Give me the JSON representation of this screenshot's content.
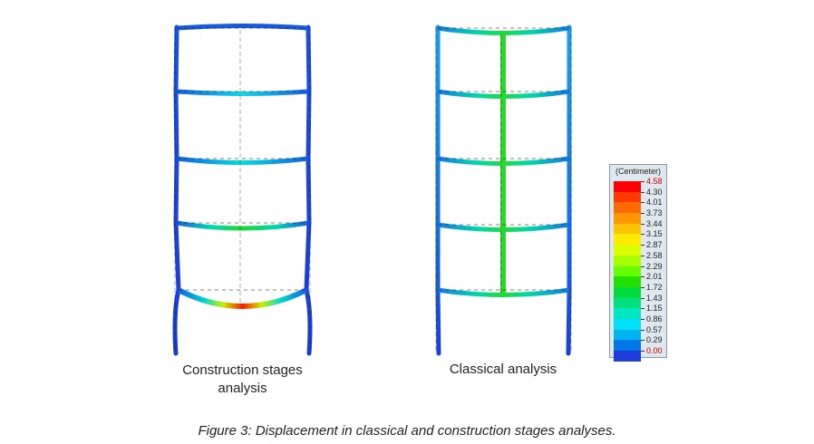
{
  "left_model": {
    "caption_line1": "Construction stages",
    "caption_line2": "analysis"
  },
  "right_model": {
    "caption": "Classical analysis"
  },
  "legend": {
    "title": "(Centimeter)",
    "levels": [
      {
        "label": "4.58",
        "color": "#ff0000",
        "highlight": true
      },
      {
        "label": "4.30",
        "color": "#ff3a00",
        "highlight": false
      },
      {
        "label": "4.01",
        "color": "#ff6a00",
        "highlight": false
      },
      {
        "label": "3.73",
        "color": "#ff9600",
        "highlight": false
      },
      {
        "label": "3.44",
        "color": "#ffc400",
        "highlight": false
      },
      {
        "label": "3.15",
        "color": "#ffea00",
        "highlight": false
      },
      {
        "label": "2.87",
        "color": "#dcff00",
        "highlight": false
      },
      {
        "label": "2.58",
        "color": "#a8ff00",
        "highlight": false
      },
      {
        "label": "2.29",
        "color": "#66ff00",
        "highlight": false
      },
      {
        "label": "2.01",
        "color": "#22e000",
        "highlight": false
      },
      {
        "label": "1.72",
        "color": "#00dc3c",
        "highlight": false
      },
      {
        "label": "1.43",
        "color": "#00e07c",
        "highlight": false
      },
      {
        "label": "1.15",
        "color": "#00e6c0",
        "highlight": false
      },
      {
        "label": "0.86",
        "color": "#00e0f8",
        "highlight": false
      },
      {
        "label": "0.57",
        "color": "#00b4f0",
        "highlight": false
      },
      {
        "label": "0.29",
        "color": "#0078e8",
        "highlight": false
      },
      {
        "label": "0.00",
        "color": "#1e3cdc",
        "highlight": true
      }
    ]
  },
  "figure_caption": "Figure 3: Displacement in classical and construction stages analyses."
}
